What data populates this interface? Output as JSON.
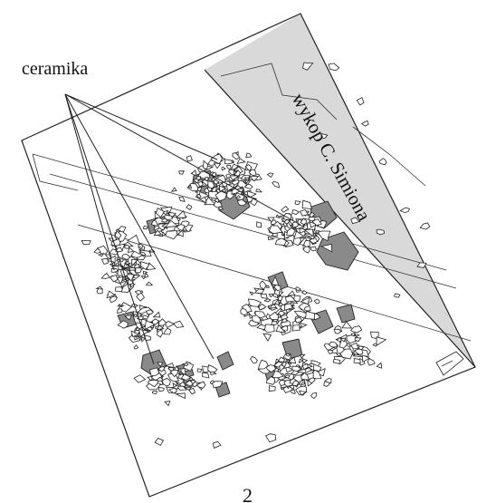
{
  "labels": {
    "ceramics": "ceramika",
    "trench": "wykop C. Simiona",
    "figure_number": "2"
  },
  "colors": {
    "trench_fill": "#d9d9d9",
    "sherd_fill": "#ffffff",
    "sherd_dark_fill": "#8a8a8a",
    "stroke": "#222222"
  }
}
